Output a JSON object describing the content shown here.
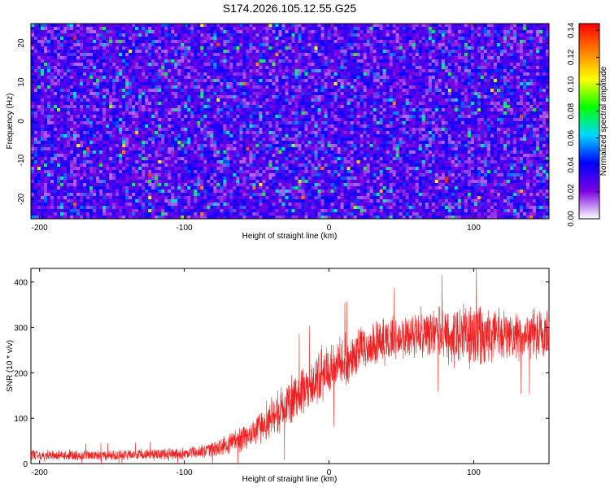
{
  "title": "S174.2026.105.12.55.G25",
  "chart_data": [
    {
      "type": "heatmap",
      "xlabel": "Height of straight line (km)",
      "ylabel": "Frequency (Hz)",
      "xlim": [
        -206,
        152
      ],
      "ylim": [
        -25,
        25
      ],
      "x_ticks": [
        -200,
        -100,
        0,
        100
      ],
      "y_ticks": [
        -20,
        -10,
        0,
        10,
        20
      ],
      "colorbar": {
        "label": "Normalized spectral amplitude",
        "range": [
          0,
          0.145
        ],
        "ticks": [
          0,
          0.02,
          0.04,
          0.06,
          0.08,
          0.1,
          0.12,
          0.14
        ],
        "tick_labels": [
          "0.00",
          "0.02",
          "0.04",
          "0.06",
          "0.08",
          "0.10",
          "0.12",
          "0.14"
        ],
        "colors": [
          "#ffffff",
          "#7a00e0",
          "#0000ff",
          "#00d8ff",
          "#00ff00",
          "#ffff00",
          "#ff8000",
          "#ff0000"
        ]
      },
      "summary": {
        "background_range": [
          0.0,
          0.04
        ],
        "typical_peak": 0.06,
        "max_value": 0.14
      }
    },
    {
      "type": "line",
      "xlabel": "Height of straight line (km)",
      "ylabel": "SNR (10 * v/v)",
      "xlim": [
        -206,
        152
      ],
      "ylim": [
        0,
        430
      ],
      "x_ticks": [
        -200,
        -100,
        0,
        100
      ],
      "y_ticks": [
        0,
        100,
        200,
        300,
        400
      ],
      "color": "#ee2222",
      "series": [
        {
          "x": [
            -206,
            -180,
            -160,
            -140,
            -120,
            -100,
            -90,
            -80,
            -70,
            -60,
            -50,
            -40,
            -30,
            -20,
            -10,
            0,
            10,
            20,
            30,
            40,
            50,
            60,
            70,
            80,
            90,
            100,
            110,
            120,
            130,
            140,
            152
          ],
          "mean": [
            18,
            18,
            18,
            19,
            20,
            22,
            26,
            32,
            42,
            55,
            75,
            100,
            130,
            155,
            180,
            205,
            225,
            250,
            265,
            275,
            280,
            283,
            285,
            285,
            285,
            280,
            280,
            282,
            285,
            285,
            285
          ],
          "spread": [
            12,
            12,
            12,
            12,
            13,
            14,
            16,
            20,
            24,
            30,
            38,
            48,
            55,
            60,
            60,
            60,
            58,
            55,
            52,
            50,
            50,
            52,
            55,
            60,
            70,
            80,
            70,
            60,
            60,
            60,
            60
          ]
        }
      ]
    }
  ]
}
